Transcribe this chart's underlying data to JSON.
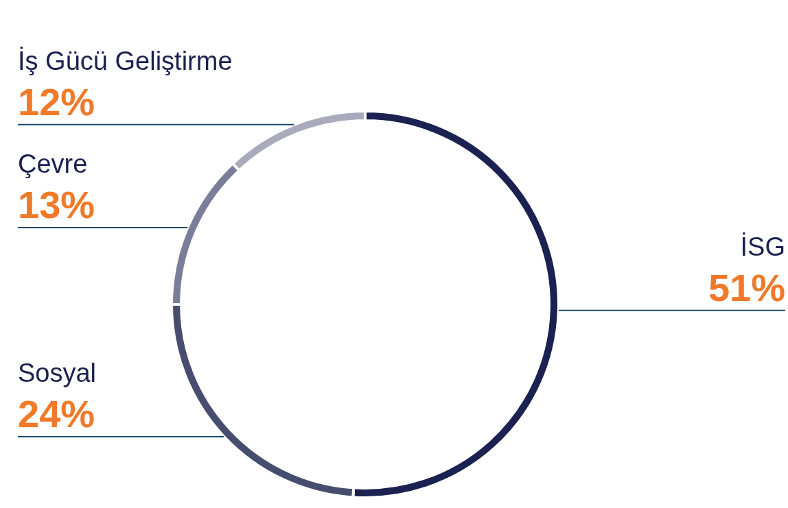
{
  "chart_data": {
    "type": "donut",
    "categories": [
      "İSG",
      "Sosyal",
      "Çevre",
      "İş Gücü Geliştirme"
    ],
    "values": [
      51,
      24,
      13,
      12
    ],
    "value_labels": [
      "51%",
      "24%",
      "13%",
      "12%"
    ],
    "colors": [
      "#1b2150",
      "#474d6e",
      "#7a7e98",
      "#a9abbd"
    ],
    "legend": false
  }
}
